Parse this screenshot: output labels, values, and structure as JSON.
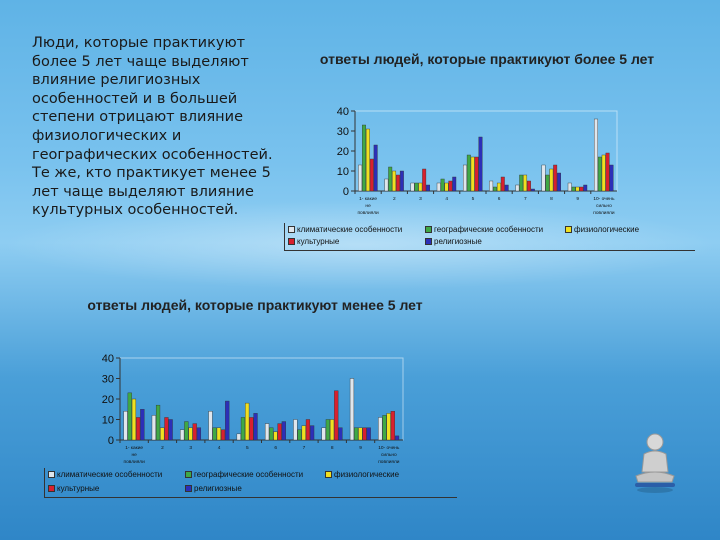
{
  "slide": {
    "text": "Люди, которые практикуют более 5 лет чаще выделяют влияние религиозных особенностей и в большей степени отрицают влияние физиологических и географических особенностей. Те же, кто практикует менее 5 лет чаще выделяют влияние культурных особенностей."
  },
  "colors": {
    "background": "#6bbbe9",
    "series": [
      "#dfe6ec",
      "#3fa845",
      "#f0e020",
      "#d8202e",
      "#2c2fb8"
    ]
  },
  "chart_data": [
    {
      "type": "bar",
      "title": "ответы людей, которые практикуют более 5 лет",
      "ylim": [
        0,
        40
      ],
      "yticks": [
        "0",
        "10",
        "20",
        "30",
        "40"
      ],
      "grid": false,
      "legend_position": "bottom",
      "categories": [
        "1-какие не повлияли",
        "2",
        "3",
        "4",
        "5",
        "6",
        "7",
        "8",
        "9",
        "10-очень сильно повлияли"
      ],
      "series": [
        {
          "name": "климатические особенности",
          "values": [
            13,
            6,
            4,
            4,
            13,
            5,
            3,
            13,
            4,
            36
          ]
        },
        {
          "name": "географические особенности",
          "values": [
            33,
            12,
            4,
            6,
            18,
            2,
            8,
            8,
            2,
            17
          ]
        },
        {
          "name": "физиологические",
          "values": [
            31,
            10,
            4,
            4,
            17,
            4,
            8,
            11,
            2,
            18
          ]
        },
        {
          "name": "культурные",
          "values": [
            16,
            8,
            11,
            5,
            17,
            7,
            5,
            13,
            2,
            19
          ]
        },
        {
          "name": "религиозные",
          "values": [
            23,
            10,
            3,
            7,
            27,
            3,
            1,
            9,
            3,
            13
          ]
        }
      ]
    },
    {
      "type": "bar",
      "title": "ответы людей, которые практикуют менее 5 лет",
      "ylim": [
        0,
        40
      ],
      "yticks": [
        "0",
        "10",
        "20",
        "30",
        "40"
      ],
      "grid": false,
      "legend_position": "bottom",
      "categories": [
        "1-какие не повлияли",
        "2",
        "3",
        "4",
        "5",
        "6",
        "7",
        "8",
        "9",
        "10-очень сильно повлияли"
      ],
      "series": [
        {
          "name": "климатические особенности",
          "values": [
            14,
            12,
            5,
            14,
            3,
            8,
            10,
            6,
            30,
            11
          ]
        },
        {
          "name": "географические особенности",
          "values": [
            23,
            17,
            9,
            6,
            11,
            6,
            5,
            10,
            6,
            12
          ]
        },
        {
          "name": "физиологические",
          "values": [
            20,
            6,
            6,
            6,
            18,
            4,
            7,
            10,
            6,
            13
          ]
        },
        {
          "name": "культурные",
          "values": [
            11,
            11,
            8,
            5,
            11,
            8,
            10,
            24,
            6,
            14
          ]
        },
        {
          "name": "религиозные",
          "values": [
            15,
            10,
            6,
            19,
            13,
            9,
            7,
            6,
            6,
            2
          ]
        }
      ]
    }
  ]
}
